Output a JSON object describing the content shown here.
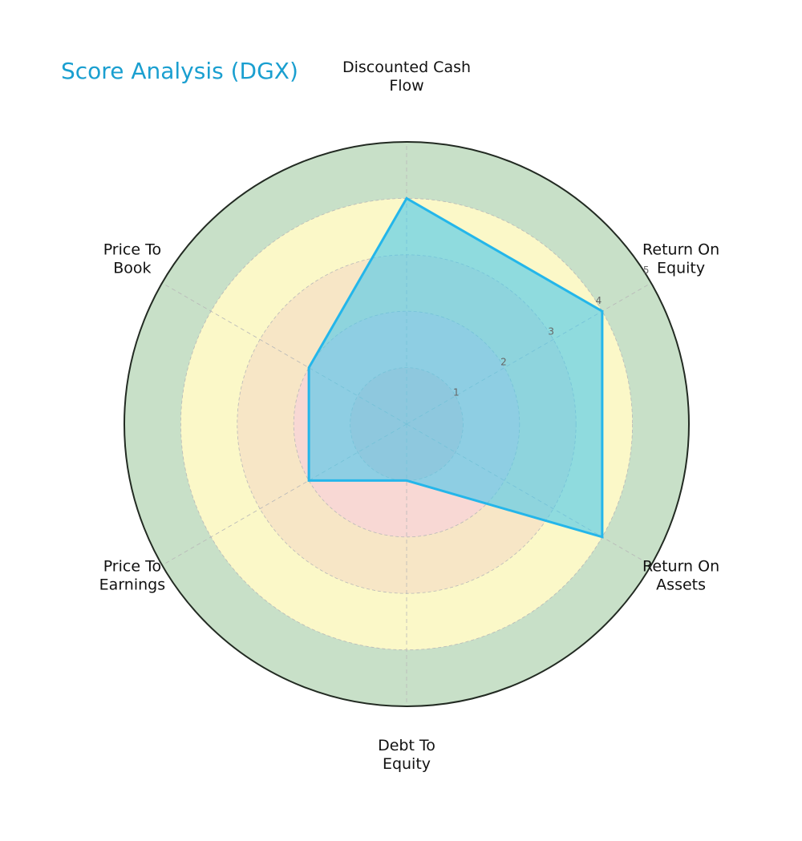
{
  "chart_data": {
    "type": "radar",
    "title": "Score Analysis (DGX)",
    "axes": [
      [
        "Discounted Cash",
        "Flow"
      ],
      [
        "Return On",
        "Equity"
      ],
      [
        "Return On",
        "Assets"
      ],
      [
        "Debt To",
        "Equity"
      ],
      [
        "Price To",
        "Earnings"
      ],
      [
        "Price To",
        "Book"
      ]
    ],
    "values": [
      4,
      4,
      4,
      1,
      2,
      2
    ],
    "rlim": [
      0,
      5
    ],
    "rticks": [
      "1",
      "2",
      "3",
      "4",
      "5"
    ],
    "bands": [
      {
        "from": 0,
        "to": 1,
        "color": "#f8c8c8"
      },
      {
        "from": 1,
        "to": 2,
        "color": "#f8d8d4"
      },
      {
        "from": 2,
        "to": 3,
        "color": "#f7e6c6"
      },
      {
        "from": 3,
        "to": 4,
        "color": "#fbf8c8"
      },
      {
        "from": 4,
        "to": 5,
        "color": "#c8e0c8"
      }
    ],
    "colors": {
      "title": "#1a9fd0",
      "series_line": "#24b6ea",
      "series_fill": "#48c8ec",
      "outer_ring": "#222a22",
      "grid": "#b8b8b8"
    }
  }
}
